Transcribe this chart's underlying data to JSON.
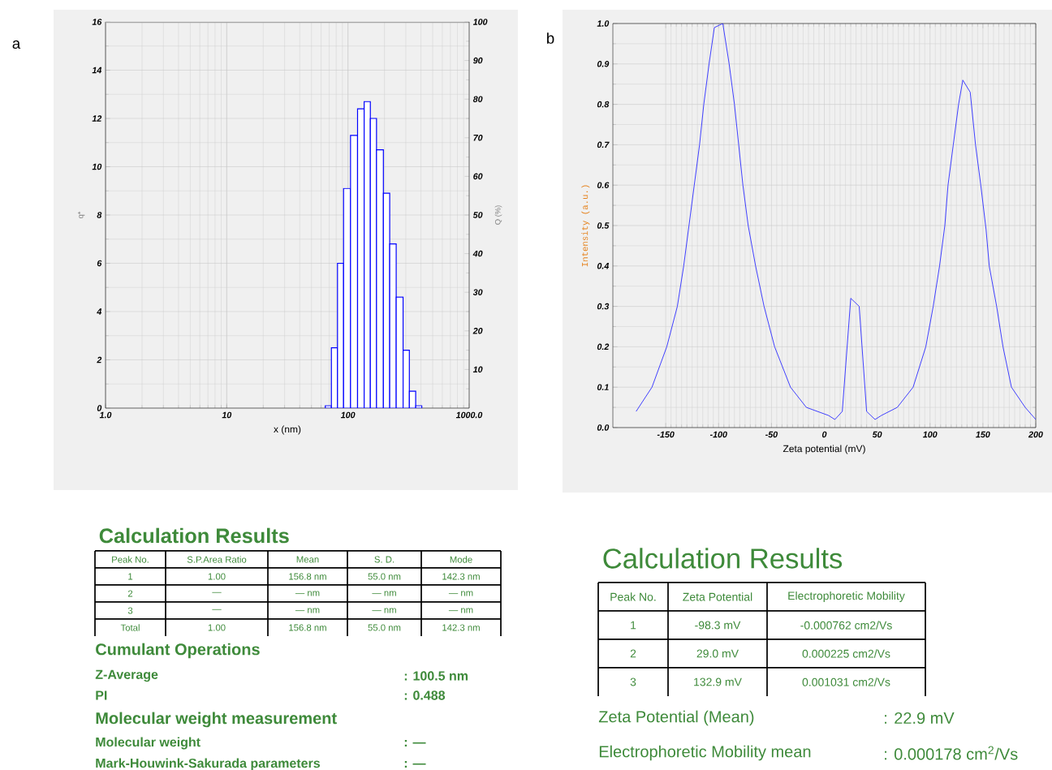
{
  "chart_data": [
    {
      "type": "histogram",
      "xlabel": "x (nm)",
      "ylabel": "q*",
      "y2label": "Q (%)",
      "bins": [
        65,
        73,
        82,
        92,
        105,
        120,
        136,
        153,
        172,
        196,
        221,
        250,
        285,
        321,
        362,
        407
      ],
      "values": [
        0.1,
        2.5,
        6.0,
        9.1,
        11.3,
        12.4,
        12.7,
        12.0,
        10.7,
        8.9,
        6.8,
        4.6,
        2.4,
        0.7,
        0.1
      ],
      "color": "#0000ff",
      "log": "x",
      "xlim": [
        1,
        1000
      ],
      "xticks": [
        {
          "value": 1,
          "label": "1.0"
        },
        10,
        100,
        {
          "value": 1000,
          "label": "1000.0"
        }
      ],
      "ylim": [
        0,
        16
      ],
      "yticks": [
        0,
        2,
        4,
        6,
        8,
        10,
        12,
        14,
        16
      ],
      "y2lim": [
        0,
        100
      ],
      "y2ticks": [
        {
          "value": 0,
          "label": null
        },
        10,
        20,
        30,
        40,
        50,
        60,
        70,
        80,
        90,
        100
      ],
      "grid": true,
      "annotations": [
        "a"
      ]
    },
    {
      "type": "line",
      "xlabel": "Zeta potential (mV)",
      "ylabel": "Intensity (a.u.)",
      "x": [
        -178,
        -163,
        -149,
        -139,
        -133,
        -128,
        -123,
        -118,
        -114,
        -109,
        -104,
        -96,
        -90,
        -85,
        -81,
        -77,
        -72,
        -65,
        -57,
        -47,
        -32,
        -17,
        4,
        10,
        17,
        25,
        33,
        40,
        48,
        54,
        69,
        84,
        96,
        103,
        109,
        114,
        117,
        122,
        127,
        131,
        138,
        143,
        148,
        153,
        156,
        163,
        169,
        177,
        190,
        200
      ],
      "values": [
        0.04,
        0.1,
        0.2,
        0.3,
        0.4,
        0.5,
        0.6,
        0.7,
        0.8,
        0.9,
        0.99,
        1.0,
        0.9,
        0.8,
        0.7,
        0.6,
        0.5,
        0.4,
        0.3,
        0.2,
        0.1,
        0.05,
        0.03,
        0.02,
        0.04,
        0.32,
        0.3,
        0.04,
        0.02,
        0.03,
        0.05,
        0.1,
        0.2,
        0.3,
        0.4,
        0.5,
        0.6,
        0.7,
        0.8,
        0.86,
        0.83,
        0.7,
        0.6,
        0.49,
        0.4,
        0.3,
        0.2,
        0.1,
        0.05,
        0.02
      ],
      "color": "#3333ff",
      "xlim": [
        -200,
        200
      ],
      "xticks": [
        -150,
        -100,
        -50,
        0,
        50,
        100,
        150,
        200
      ],
      "ylim": [
        0,
        1
      ],
      "yticks": [
        {
          "value": 0,
          "label": "0.0"
        },
        0.1,
        0.2,
        0.3,
        0.4,
        0.5,
        0.6,
        0.7,
        0.8,
        0.9,
        {
          "value": 1,
          "label": "1.0"
        }
      ],
      "grid": true,
      "annotations": [
        "b"
      ]
    },
    {
      "type": "other",
      "title": "Calculation Results",
      "categories": [
        "Peak No.",
        "S.P.Area Ratio",
        "Mean",
        "S. D.",
        "Mode"
      ],
      "y_categories": [
        "1",
        "2",
        "3",
        "Total"
      ],
      "cell_labels": [
        [
          "1.00",
          "156.8 nm",
          "55.0 nm",
          "142.3 nm"
        ],
        [
          "—",
          "— nm",
          "— nm",
          "— nm"
        ],
        [
          "—",
          "— nm",
          "— nm",
          "— nm"
        ],
        [
          "1.00",
          "156.8 nm",
          "55.0 nm",
          "142.3 nm"
        ]
      ],
      "annotations": [
        "Cumulant Operations",
        "Z-Average",
        ": 100.5 nm",
        "PI",
        ": 0.488",
        "Molecular weight measurement",
        "Molecular weight",
        ": —",
        "Mark-Houwink-Sakurada parameters",
        ": —"
      ]
    },
    {
      "type": "other",
      "title": "Calculation Results",
      "categories": [
        "Peak No.",
        "Zeta Potential",
        "Electrophoretic Mobility"
      ],
      "y_categories": [
        "1",
        "2",
        "3"
      ],
      "cell_labels": [
        [
          "-98.3 mV",
          "-0.000762 cm2/Vs"
        ],
        [
          "29.0 mV",
          "0.000225 cm2/Vs"
        ],
        [
          "132.9 mV",
          "0.001031 cm2/Vs"
        ]
      ],
      "annotations": [
        "Zeta Potential (Mean)",
        ": 22.9 mV",
        "Electrophoretic Mobility mean",
        ": 0.000178 cm$^{2}$/Vs"
      ]
    }
  ]
}
